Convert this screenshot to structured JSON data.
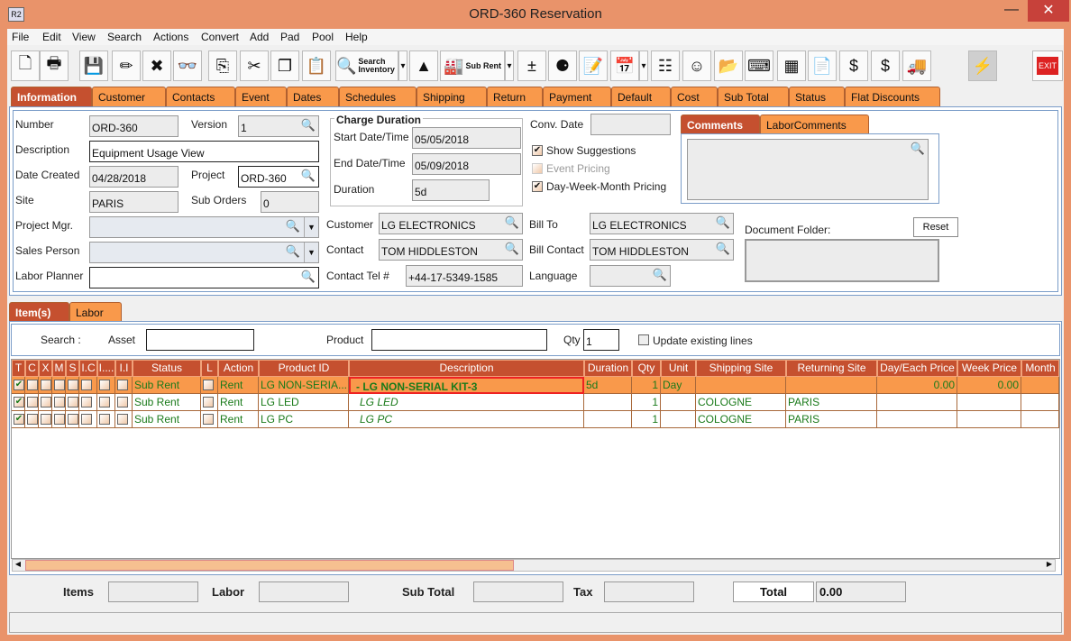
{
  "window": {
    "title": "ORD-360 Reservation",
    "app_icon": "R2",
    "close": "✕",
    "minimize": "—"
  },
  "menu": [
    "File",
    "Edit",
    "View",
    "Search",
    "Actions",
    "Convert",
    "Add",
    "Pad",
    "Pool",
    "Help"
  ],
  "toolbar": [
    {
      "icon": "new-document-icon",
      "glyph": "🗋"
    },
    {
      "icon": "print-icon",
      "glyph": "🖶"
    },
    {
      "icon": "save-icon",
      "glyph": "💾"
    },
    {
      "icon": "edit-pencil-icon",
      "glyph": "✏"
    },
    {
      "icon": "delete-icon",
      "glyph": "✖"
    },
    {
      "icon": "binoculars-icon",
      "glyph": "👓"
    },
    {
      "icon": "copy-to-icon",
      "glyph": "⎘"
    },
    {
      "icon": "cut-icon",
      "glyph": "✂"
    },
    {
      "icon": "copy-icon",
      "glyph": "❐"
    },
    {
      "icon": "paste-icon",
      "glyph": "📋"
    },
    {
      "icon": "search-inventory-icon",
      "glyph": "🔍",
      "label": "Search Inventory"
    },
    {
      "icon": "dropdown-icon",
      "glyph": "▾"
    },
    {
      "icon": "shapes-icon",
      "glyph": "▲"
    },
    {
      "icon": "sub-rent-icon",
      "glyph": "🏭",
      "label": "Sub Rent"
    },
    {
      "icon": "dropdown-icon",
      "glyph": "▾"
    },
    {
      "icon": "add-remove-icon",
      "glyph": "±"
    },
    {
      "icon": "balls-help-icon",
      "glyph": "⚈"
    },
    {
      "icon": "notepad-edit-icon",
      "glyph": "📝"
    },
    {
      "icon": "calendar-icon",
      "glyph": "📅"
    },
    {
      "icon": "dropdown-icon",
      "glyph": "▾"
    },
    {
      "icon": "hierarchy-icon",
      "glyph": "☷"
    },
    {
      "icon": "smiley-icon",
      "glyph": "☺"
    },
    {
      "icon": "folder-clock-icon",
      "glyph": "📂"
    },
    {
      "icon": "key-icon",
      "glyph": "⌨"
    },
    {
      "icon": "stacks-icon",
      "glyph": "▦"
    },
    {
      "icon": "document-edit-icon",
      "glyph": "📄"
    },
    {
      "icon": "money-forward-icon",
      "glyph": "$"
    },
    {
      "icon": "money-notes-icon",
      "glyph": "$"
    },
    {
      "icon": "truck-icon",
      "glyph": "🚚"
    },
    {
      "icon": "lightning-icon",
      "glyph": "⚡"
    },
    {
      "icon": "exit-icon",
      "glyph": "EXIT"
    }
  ],
  "tabs": [
    "Information",
    "Customer",
    "Contacts",
    "Event",
    "Dates",
    "Schedules",
    "Shipping",
    "Return",
    "Payment",
    "Default",
    "Cost",
    "Sub Total",
    "Status",
    "Flat Discounts"
  ],
  "info": {
    "number_label": "Number",
    "number": "ORD-360",
    "version_label": "Version",
    "version": "1",
    "description_label": "Description",
    "description": "Equipment Usage View",
    "date_created_label": "Date Created",
    "date_created": "04/28/2018",
    "project_label": "Project",
    "project": "ORD-360",
    "site_label": "Site",
    "site": "PARIS",
    "sub_orders_label": "Sub Orders",
    "sub_orders": "0",
    "project_mgr_label": "Project Mgr.",
    "sales_person_label": "Sales Person",
    "labor_planner_label": "Labor Planner",
    "charge_duration": "Charge Duration",
    "start_label": "Start Date/Time",
    "start": "05/05/2018",
    "end_label": "End Date/Time",
    "end": "05/09/2018",
    "duration_label": "Duration",
    "duration": "5d",
    "customer_label": "Customer",
    "customer": "LG ELECTRONICS",
    "contact_label": "Contact",
    "contact": "TOM HIDDLESTON",
    "tel_label": "Contact Tel #",
    "tel": "+44-17-5349-1585",
    "conv_date_label": "Conv. Date",
    "show_suggestions": "Show Suggestions",
    "event_pricing": "Event Pricing",
    "dwm_pricing": "Day-Week-Month Pricing",
    "bill_to_label": "Bill To",
    "bill_to": "LG ELECTRONICS",
    "bill_contact_label": "Bill Contact",
    "bill_contact": "TOM HIDDLESTON",
    "language_label": "Language",
    "comments_tab": "Comments",
    "labor_comments_tab": "LaborComments",
    "doc_folder_label": "Document Folder:",
    "reset": "Reset"
  },
  "items": {
    "tabs": [
      "Item(s)",
      "Labor"
    ],
    "search_label": "Search :",
    "asset_label": "Asset",
    "product_label": "Product",
    "qty_label": "Qty",
    "qty": "1",
    "update_label": "Update existing lines",
    "columns": [
      "T",
      "C",
      "X",
      "M",
      "S",
      "I.C",
      "I....",
      "I.I",
      "Status",
      "L",
      "Action",
      "Product ID",
      "Description",
      "Duration",
      "Qty",
      "Unit",
      "Shipping Site",
      "Returning Site",
      "Day/Each Price",
      "Week Price",
      "Month"
    ],
    "rows": [
      {
        "status": "Sub Rent",
        "action": "Rent",
        "product_id": "LG NON-SERIA...",
        "description": "-  LG NON-SERIAL KIT-3",
        "duration": "5d",
        "qty": "1",
        "unit": "Day",
        "shipping": "",
        "returning": "",
        "day_price": "0.00",
        "week_price": "0.00",
        "selected": true
      },
      {
        "status": "Sub Rent",
        "action": "Rent",
        "product_id": "LG LED",
        "description": "LG LED",
        "duration": "",
        "qty": "1",
        "unit": "",
        "shipping": "COLOGNE",
        "returning": "PARIS",
        "day_price": "",
        "week_price": "",
        "selected": false
      },
      {
        "status": "Sub Rent",
        "action": "Rent",
        "product_id": "LG PC",
        "description": "LG PC",
        "duration": "",
        "qty": "1",
        "unit": "",
        "shipping": "COLOGNE",
        "returning": "PARIS",
        "day_price": "",
        "week_price": "",
        "selected": false
      }
    ]
  },
  "totals": {
    "items_label": "Items",
    "labor_label": "Labor",
    "subtotal_label": "Sub Total",
    "tax_label": "Tax",
    "total_label": "Total",
    "total": "0.00"
  },
  "colors": {
    "frame": "#e9936a",
    "tab": "#f9994b",
    "active_tab": "#c5502f",
    "selected_row": "#f9994b",
    "text_green": "#1a7a1a"
  }
}
